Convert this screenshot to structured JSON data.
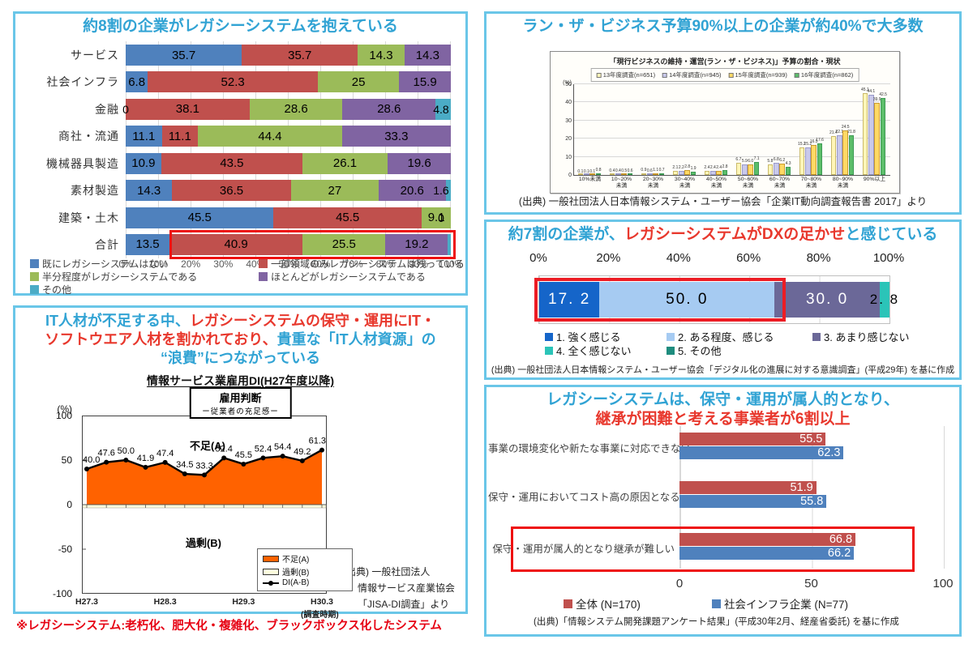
{
  "footnote": "※レガシーシステム:老朽化、肥大化・複雑化、ブラックボックス化したシステム",
  "panels": {
    "p1": {
      "title": "約8割の企業がレガシーシステムを抱えている",
      "x_ticks": [
        "0%",
        "10%",
        "20%",
        "30%",
        "40%",
        "50%",
        "60%",
        "70%",
        "80%",
        "90%",
        "100%"
      ]
    },
    "p2": {
      "title": "ラン・ザ・ビジネス予算90%以上の企業が約40%で大多数",
      "source": "(出典) 一般社団法人日本情報システム・ユーザー協会「企業IT動向調査報告書 2017」より"
    },
    "p3": {
      "title_lines": [
        [
          {
            "t": "約7割の企業が、",
            "c": "blue"
          },
          {
            "t": "レガシーシステムがDXの足かせ",
            "c": "red"
          },
          {
            "t": "と感じている",
            "c": "blue"
          }
        ]
      ],
      "source": "(出典) 一般社団法人日本情報システム・ユーザー協会「デジタル化の進展に対する意識調査」(平成29年) を基に作成"
    },
    "p4": {
      "title_lines": [
        [
          {
            "t": "IT人材が不足する中、",
            "c": "blue"
          },
          {
            "t": "レガシーシステムの保守・運用にIT・",
            "c": "red"
          }
        ],
        [
          {
            "t": "ソフトウエア人材を割かれており、",
            "c": "red"
          },
          {
            "t": "貴重な「IT人材資源」の",
            "c": "blue"
          }
        ],
        [
          {
            "t": "“浪費”につながっている",
            "c": "blue"
          }
        ]
      ],
      "subtitle": "情報サービス業雇用DI(H27年度以降)",
      "box_line1": "雇用判断",
      "box_line2": "ー従業者の充足感ー",
      "source_lines": [
        "(出典) 一般社団法人",
        "情報サービス産業協会",
        "「JISA-DI調査」より"
      ]
    },
    "p5": {
      "title_lines": [
        [
          {
            "t": "レガシーシステムは、保守・運用が属人的となり、",
            "c": "blue"
          }
        ],
        [
          {
            "t": "継承が困難と考える事業者が6割以上",
            "c": "red"
          }
        ]
      ],
      "source": "(出典)「情報システム開発課題アンケート結果」(平成30年2月、経産省委託) を基に作成"
    }
  },
  "chart_data": [
    {
      "id": "legacy-by-industry",
      "type": "bar",
      "stacked": true,
      "orientation": "horizontal",
      "title": "約8割の企業がレガシーシステムを抱えている",
      "xlim": [
        0,
        100
      ],
      "categories": [
        "サービス",
        "社会インフラ",
        "金融",
        "商社・流通",
        "機械器具製造",
        "素材製造",
        "建築・土木",
        "合計"
      ],
      "series": [
        {
          "name": "既にレガシーシステムはない",
          "color": "#4F81BD",
          "values": [
            35.7,
            6.8,
            0,
            11.1,
            10.9,
            14.3,
            45.5,
            13.5
          ],
          "labels": [
            "35.7",
            "6.8",
            "0",
            "11.1",
            "10.9",
            "14.3",
            "45.5",
            "13.5"
          ]
        },
        {
          "name": "一部領域のみレガシーシステムは残っている",
          "color": "#C0504D",
          "values": [
            35.7,
            52.3,
            38.1,
            11.1,
            43.5,
            36.5,
            45.5,
            40.9
          ],
          "labels": [
            "35.7",
            "52.3",
            "38.1",
            "11.1",
            "43.5",
            "36.5",
            "45.5",
            "40.9"
          ]
        },
        {
          "name": "半分程度がレガシーシステムである",
          "color": "#9BBB59",
          "values": [
            14.3,
            25,
            28.6,
            44.4,
            26.1,
            27,
            9.1,
            25.5
          ],
          "labels": [
            "14.3",
            "25",
            "28.6",
            "44.4",
            "26.1",
            "27",
            "9.1",
            "25.5"
          ]
        },
        {
          "name": "ほとんどがレガシーシステムである",
          "color": "#8064A2",
          "values": [
            14.3,
            15.9,
            28.6,
            33.3,
            19.6,
            20.6,
            0,
            19.2
          ],
          "labels": [
            "14.3",
            "15.9",
            "28.6",
            "33.3",
            "19.6",
            "20.6",
            "0",
            "19.2"
          ]
        },
        {
          "name": "その他",
          "color": "#4BACC6",
          "values": [
            0,
            0,
            4.8,
            0,
            0,
            1.6,
            0,
            0.9
          ],
          "labels": [
            null,
            null,
            "4.8",
            null,
            null,
            "1.6",
            null,
            null
          ]
        }
      ],
      "highlight_row": 7
    },
    {
      "id": "run-the-business-budget",
      "type": "bar",
      "chart_title": "「現行ビジネスの維持・運営(ラン・ザ・ビジネス)」予算の割合・現状",
      "ylabel": "(%)",
      "ylim": [
        0,
        50
      ],
      "yticks": [
        0,
        10,
        20,
        30,
        40,
        50
      ],
      "categories": [
        [
          "10%未満",
          ""
        ],
        [
          "10~20%",
          "未満"
        ],
        [
          "20~30%",
          "未満"
        ],
        [
          "30~40%",
          "未満"
        ],
        [
          "40~50%",
          "未満"
        ],
        [
          "50~60%",
          "未満"
        ],
        [
          "60~70%",
          "未満"
        ],
        [
          "70~80%",
          "未満"
        ],
        [
          "80~90%",
          "未満"
        ],
        [
          "90%以上",
          ""
        ]
      ],
      "series": [
        {
          "name": "13年度調査(n=651)",
          "color": "#FFF6B8",
          "border": "#C9B96A",
          "values": [
            0.1,
            0.4,
            0.9,
            2.1,
            2.4,
            6.7,
            5.8,
            15.2,
            21.4,
            45.1
          ]
        },
        {
          "name": "14年度調査(n=945)",
          "color": "#C9C9EB",
          "border": "#9A9AC8",
          "values": [
            0.1,
            0.4,
            0.6,
            2.2,
            2.4,
            5.9,
            6.8,
            15.2,
            22.1,
            44.1
          ]
        },
        {
          "name": "15年度調査(n=939)",
          "color": "#FFD965",
          "border": "#C99A2E",
          "values": [
            0.1,
            0.5,
            1.1,
            2.8,
            2.4,
            6.0,
            6.2,
            16.5,
            24.5,
            39.9
          ]
        },
        {
          "name": "16年度調査(n=862)",
          "color": "#5CBE6A",
          "border": "#3E9A54",
          "values": [
            0.8,
            0.6,
            0.7,
            1.9,
            2.8,
            7.1,
            4.3,
            17.6,
            21.8,
            42.5
          ]
        }
      ]
    },
    {
      "id": "dx-hindrance",
      "type": "bar",
      "stacked": true,
      "orientation": "horizontal",
      "xlim": [
        0,
        100
      ],
      "x_ticks": [
        "0%",
        "20%",
        "40%",
        "60%",
        "80%",
        "100%"
      ],
      "segments": [
        {
          "label": "1. 強く感じる",
          "value": 17.2,
          "display": "17. 2",
          "color": "#1565C9",
          "text": "#ffffff",
          "label_inside": true
        },
        {
          "label": "2. ある程度、感じる",
          "value": 50.0,
          "display": "50. 0",
          "color": "#A6CBF2",
          "text": "#000000",
          "label_inside": true
        },
        {
          "label": "3. あまり感じない",
          "value": 30.0,
          "display": "30. 0",
          "color": "#6B6898",
          "text": "#ffffff",
          "label_inside": true
        },
        {
          "label": "4. 全く感じない",
          "value": 2.8,
          "display": "2. 8",
          "color": "#2BC4B8",
          "text": "#000000",
          "label_inside": false
        }
      ],
      "legend": [
        {
          "label": "1. 強く感じる",
          "color": "#1565C9"
        },
        {
          "label": "2. ある程度、感じる",
          "color": "#A6CBF2"
        },
        {
          "label": "3. あまり感じない",
          "color": "#6B6898"
        },
        {
          "label": "4. 全く感じない",
          "color": "#2BC4B8"
        },
        {
          "label": "5. その他",
          "color": "#1E8C7E"
        }
      ],
      "highlight_through": 67.2
    },
    {
      "id": "it-jinzai-di",
      "type": "line",
      "title": "情報サービス業雇用DI(H27年度以降)",
      "ylim": [
        -100,
        100
      ],
      "yticks": [
        100,
        50,
        0,
        -50,
        -100
      ],
      "ylabel": "(%)",
      "di_values": [
        40.0,
        47.6,
        50.0,
        41.9,
        47.4,
        34.5,
        33.3,
        52.4,
        45.5,
        52.4,
        54.4,
        49.2,
        61.3
      ],
      "x_tick_positions": [
        0,
        4,
        8,
        12
      ],
      "x_tick_labels": [
        "H27.3",
        "H28.3",
        "H29.3",
        "H30.3"
      ],
      "x_axis_note": "(調査時期)",
      "area_label_above": "不足(A)",
      "area_label_below": "過剰(B)",
      "legend": [
        {
          "label": "不足(A)",
          "color": "#FF6200"
        },
        {
          "label": "過剰(B)",
          "color": "#FFFFDE"
        },
        {
          "label": "DI(A-B)",
          "color": "#000000"
        }
      ]
    },
    {
      "id": "legacy-issues",
      "type": "bar",
      "orientation": "horizontal",
      "xlim": [
        0,
        100
      ],
      "x_ticks": [
        "0",
        "50",
        "100"
      ],
      "categories": [
        "事業の環境変化や新たな事業に対応できない",
        "保守・運用においてコスト高の原因となる",
        "保守・運用が属人的となり継承が難しい"
      ],
      "series": [
        {
          "name": "全体 (N=170)",
          "color": "#C0504D",
          "values": [
            55.5,
            51.9,
            66.8
          ]
        },
        {
          "name": "社会インフラ企業 (N=77)",
          "color": "#4F81BD",
          "values": [
            62.3,
            55.8,
            66.2
          ]
        }
      ],
      "highlight_category_index": 2
    }
  ]
}
